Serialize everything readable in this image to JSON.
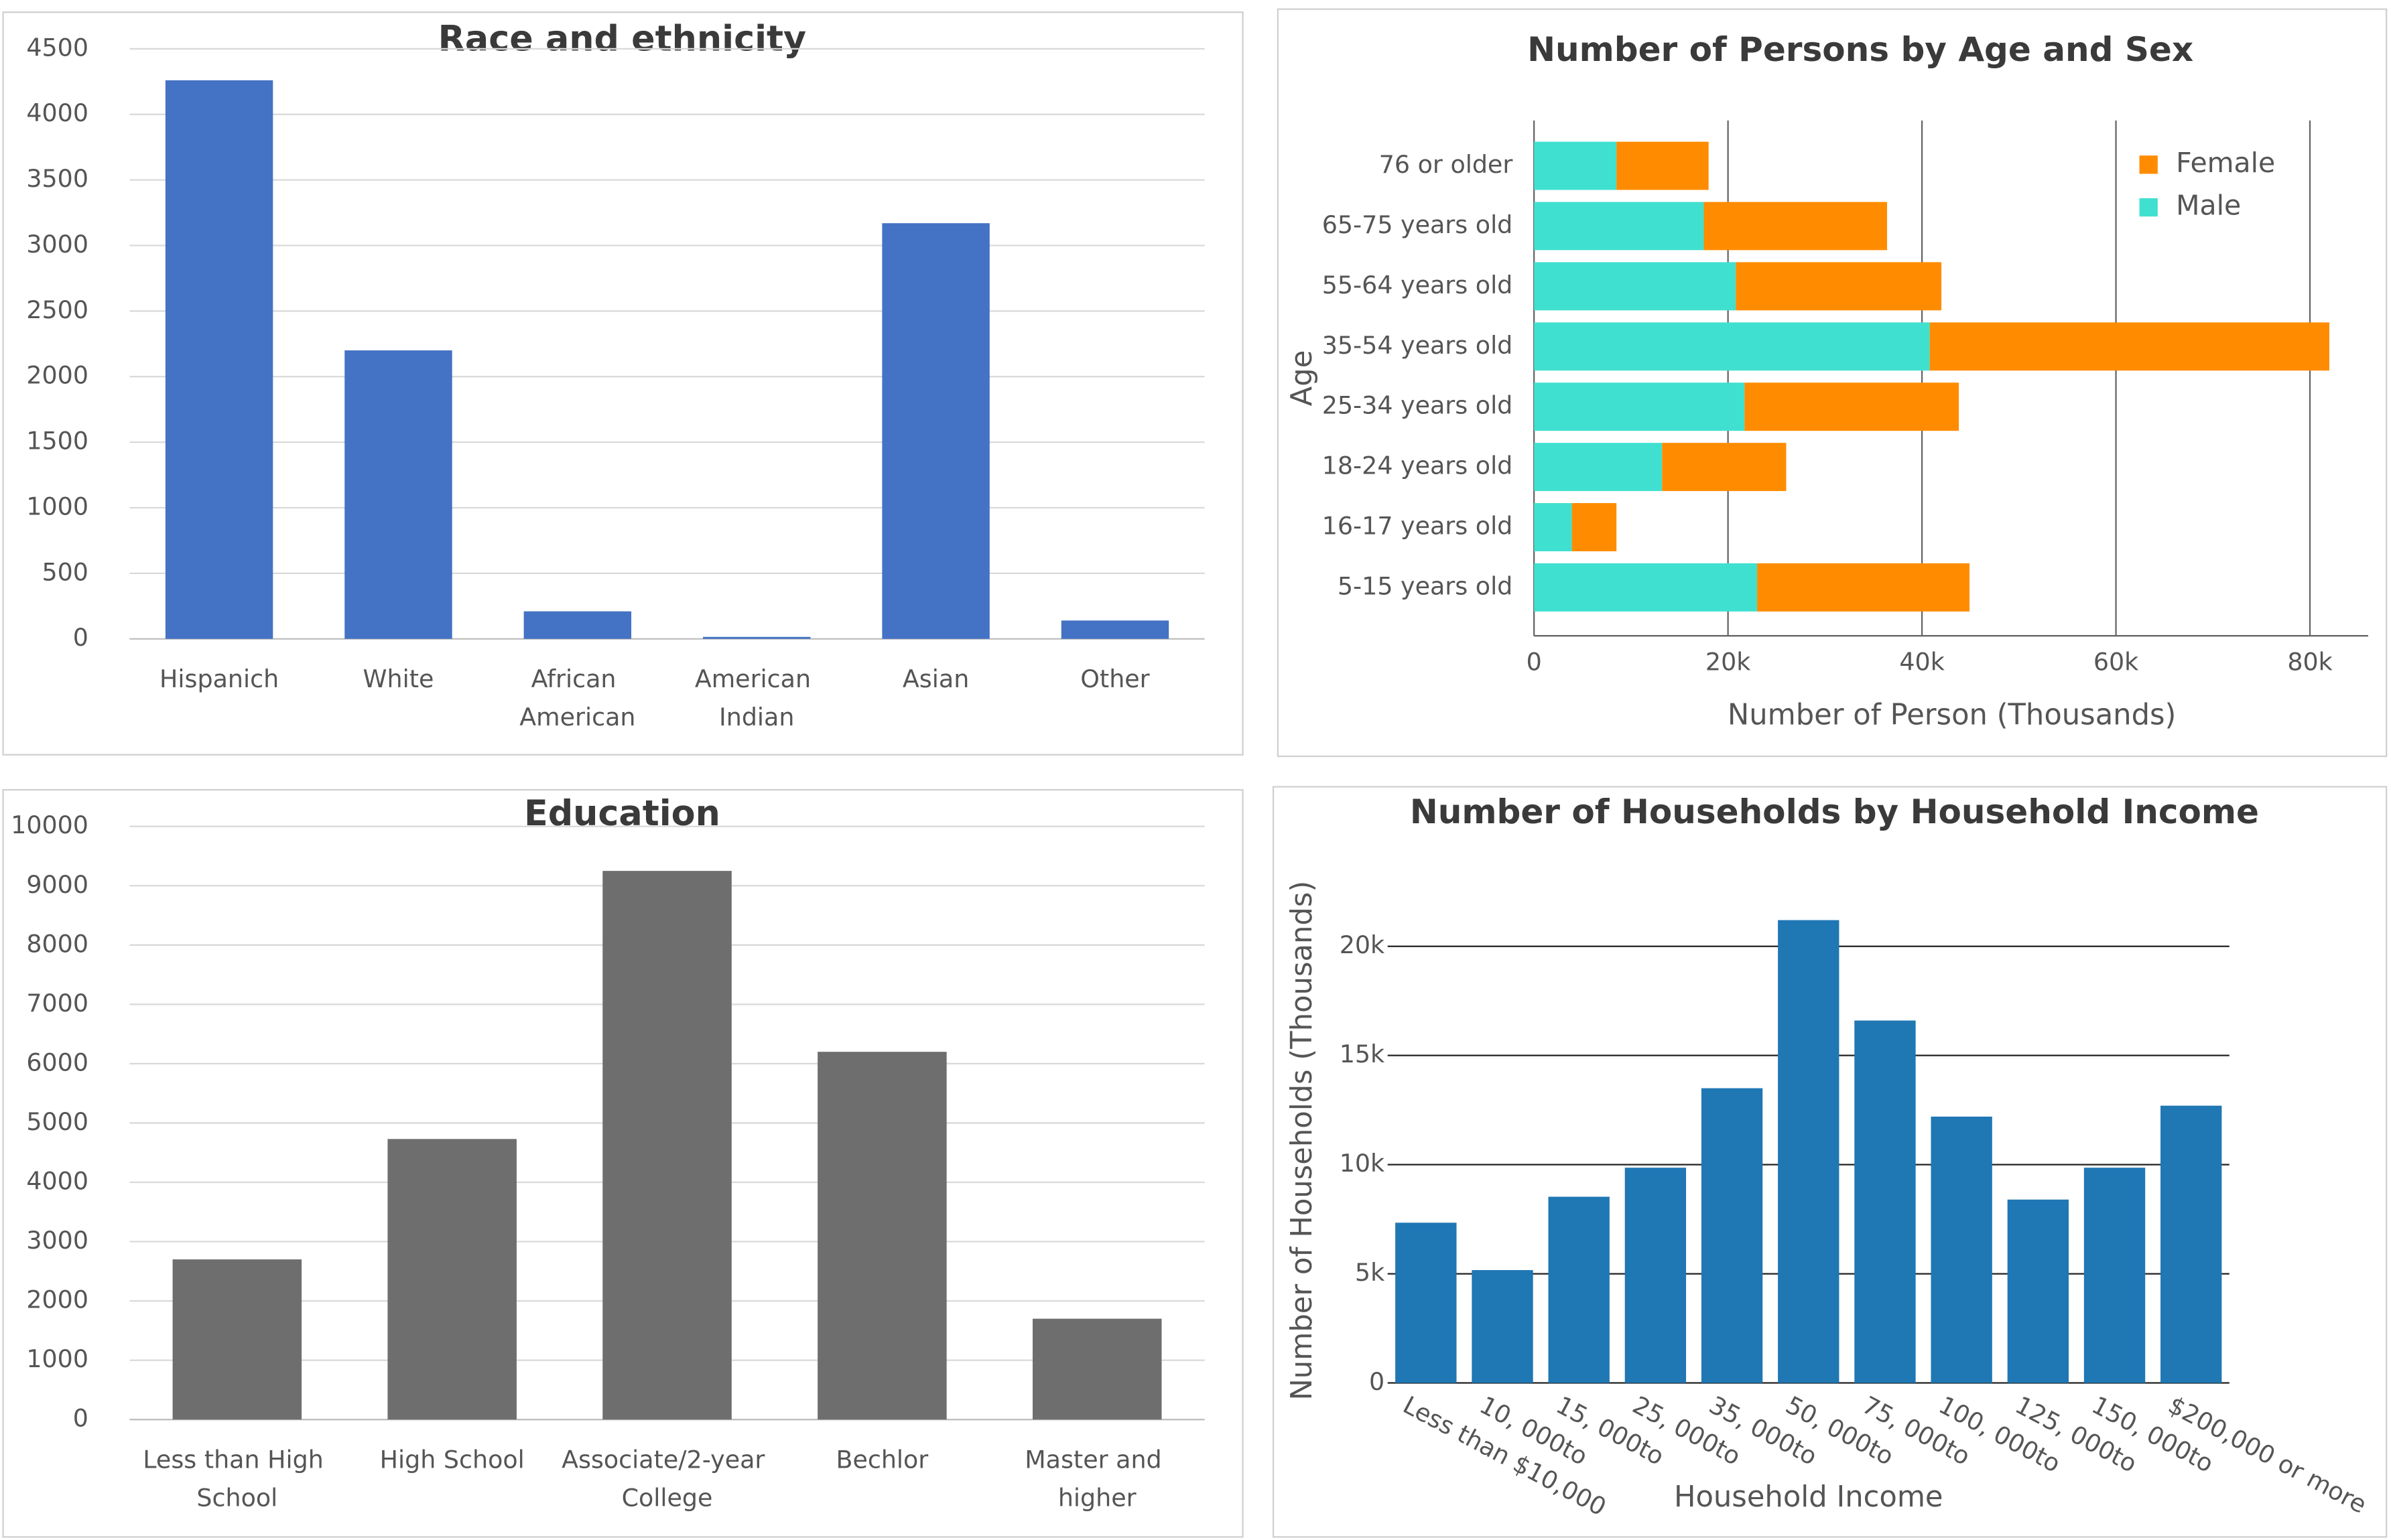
{
  "chart_data": [
    {
      "type": "bar",
      "title": "Race and ethnicity",
      "categories": [
        "Hispanich",
        "White",
        "African American",
        "American Indian",
        "Asian",
        "Other"
      ],
      "values": [
        4260,
        2200,
        210,
        15,
        3170,
        140
      ],
      "color": "#4472c4",
      "ylim": [
        0,
        4500
      ],
      "yticks": [
        0,
        500,
        1000,
        1500,
        2000,
        2500,
        3000,
        3500,
        4000,
        4500
      ],
      "grid": true
    },
    {
      "type": "stacked-barh",
      "title": "Number of Persons by Age and Sex",
      "categories": [
        "76 or older",
        "65-75 years old",
        "55-64 years old",
        "35-54 years old",
        "25-34 years old",
        "18-24 years old",
        "16-17 years old",
        "5-15 years old"
      ],
      "series": [
        {
          "name": "Male",
          "color": "#40e0d0",
          "values": [
            8500,
            17500,
            20800,
            40800,
            21700,
            13200,
            3900,
            23000
          ]
        },
        {
          "name": "Female",
          "color": "#ff8c00",
          "values": [
            9500,
            18900,
            21200,
            41200,
            22100,
            12800,
            4600,
            21900
          ]
        }
      ],
      "xlim": [
        0,
        86000
      ],
      "xticks": [
        0,
        {
          "value": 20000,
          "label": "20k"
        },
        {
          "value": 40000,
          "label": "40k"
        },
        {
          "value": 60000,
          "label": "60k"
        },
        {
          "value": 80000,
          "label": "80k"
        }
      ],
      "x_label": "Number of Person (Thousands)",
      "y_label": "Age",
      "grid": true,
      "legend": "top-right"
    },
    {
      "type": "bar",
      "title": "Education",
      "categories": [
        "Less than High School",
        "High School",
        "Associate/2-year College",
        "Bechlor",
        "Master and higher"
      ],
      "values": [
        2700,
        4730,
        9250,
        6200,
        1700
      ],
      "color": "#6e6e6e",
      "ylim": [
        0,
        10000
      ],
      "yticks": [
        0,
        1000,
        2000,
        3000,
        4000,
        5000,
        6000,
        7000,
        8000,
        9000,
        10000
      ],
      "grid": true
    },
    {
      "type": "bar",
      "title": "Number of Households by Household Income",
      "categories": [
        "Less than $10,000",
        "10, 000to",
        "15, 000to",
        "25, 000to",
        "35, 000to",
        "50, 000to",
        "75, 000to",
        "100, 000to",
        "125, 000to",
        "150, 000to",
        "$200,000 or more"
      ],
      "values": [
        7340,
        5170,
        8530,
        9860,
        13500,
        21200,
        16600,
        12200,
        8400,
        9860,
        12700
      ],
      "color": "#1f77b4",
      "ylim": [
        0,
        22000
      ],
      "yticks": [
        0,
        {
          "value": 5000,
          "label": "5k"
        },
        {
          "value": 10000,
          "label": "10k"
        },
        {
          "value": 15000,
          "label": "15k"
        },
        {
          "value": 20000,
          "label": "20k"
        }
      ],
      "x_label": "Household Income",
      "y_label": "Number of Households (Thousands)",
      "grid": true
    }
  ]
}
